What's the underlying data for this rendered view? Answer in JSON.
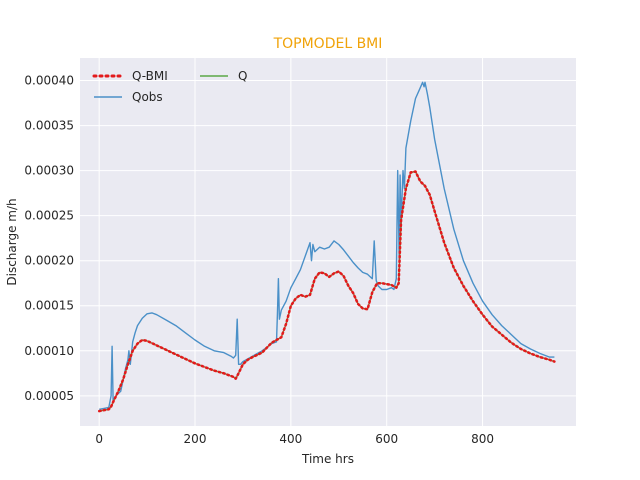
{
  "chart_data": {
    "type": "line",
    "title": "TOPMODEL BMI",
    "title_color": "#f0a30a",
    "xlabel": "Time hrs",
    "ylabel": "Discharge m/h",
    "xlim": [
      -40,
      995
    ],
    "ylim": [
      1.65e-05,
      0.000425
    ],
    "xticks": [
      0,
      200,
      400,
      600,
      800
    ],
    "xtick_labels": [
      "0",
      "200",
      "400",
      "600",
      "800"
    ],
    "yticks": [
      5e-05,
      0.0001,
      0.00015,
      0.0002,
      0.00025,
      0.0003,
      0.00035,
      0.0004
    ],
    "ytick_labels": [
      "0.00005",
      "0.00010",
      "0.00015",
      "0.00020",
      "0.00025",
      "0.00030",
      "0.00035",
      "0.00040"
    ],
    "grid": true,
    "background": "#eaeaf2",
    "legend_position": "top-left",
    "series": [
      {
        "name": "Q-BMI",
        "color": "#e31a1c",
        "style": "dotted",
        "x": [
          0,
          10,
          20,
          25,
          30,
          40,
          50,
          60,
          70,
          80,
          90,
          100,
          120,
          140,
          160,
          180,
          200,
          220,
          240,
          260,
          280,
          285,
          290,
          300,
          310,
          320,
          340,
          360,
          370,
          380,
          390,
          400,
          410,
          420,
          430,
          440,
          450,
          460,
          470,
          480,
          490,
          500,
          510,
          520,
          530,
          540,
          550,
          560,
          570,
          580,
          590,
          600,
          610,
          620,
          625,
          630,
          640,
          650,
          660,
          670,
          680,
          690,
          700,
          720,
          740,
          760,
          780,
          800,
          820,
          840,
          860,
          880,
          900,
          920,
          940,
          950
        ],
        "y": [
          3.3e-05,
          3.4e-05,
          3.5e-05,
          3.8e-05,
          4.4e-05,
          5.5e-05,
          6.8e-05,
          8.5e-05,
          0.0001,
          0.000108,
          0.000112,
          0.000111,
          0.000106,
          0.000101,
          9.6e-05,
          9.1e-05,
          8.6e-05,
          8.2e-05,
          7.8e-05,
          7.5e-05,
          7.1e-05,
          6.9e-05,
          7.4e-05,
          8.5e-05,
          9e-05,
          9.3e-05,
          9.8e-05,
          0.000109,
          0.000112,
          0.000115,
          0.00013,
          0.00015,
          0.000158,
          0.000162,
          0.00016,
          0.000162,
          0.00018,
          0.000187,
          0.000186,
          0.000182,
          0.000186,
          0.000188,
          0.000183,
          0.000172,
          0.000164,
          0.000152,
          0.000147,
          0.000146,
          0.000165,
          0.000175,
          0.000175,
          0.000174,
          0.000173,
          0.00017,
          0.000175,
          0.000245,
          0.00028,
          0.000298,
          0.000299,
          0.000288,
          0.000283,
          0.000273,
          0.000255,
          0.00022,
          0.000192,
          0.000172,
          0.000155,
          0.00014,
          0.000127,
          0.000118,
          0.000109,
          0.000102,
          9.7e-05,
          9.3e-05,
          9e-05,
          8.8e-05
        ]
      },
      {
        "name": "Qobs",
        "color": "#4a90c8",
        "style": "solid",
        "x": [
          0,
          10,
          20,
          25,
          27,
          29,
          35,
          45,
          55,
          60,
          62,
          65,
          70,
          75,
          80,
          90,
          100,
          110,
          120,
          140,
          160,
          180,
          200,
          220,
          240,
          260,
          275,
          280,
          285,
          288,
          291,
          295,
          300,
          320,
          340,
          360,
          370,
          372,
          374,
          376,
          380,
          390,
          400,
          410,
          420,
          430,
          440,
          443,
          446,
          450,
          460,
          470,
          480,
          490,
          500,
          510,
          520,
          530,
          540,
          550,
          560,
          570,
          574,
          578,
          582,
          590,
          600,
          610,
          615,
          620,
          623,
          626,
          628,
          630,
          632,
          634,
          637,
          640,
          650,
          660,
          670,
          675,
          678,
          680,
          685,
          690,
          700,
          720,
          740,
          760,
          780,
          800,
          820,
          840,
          860,
          880,
          900,
          920,
          940,
          950
        ],
        "y": [
          3.5e-05,
          3.6e-05,
          3.7e-05,
          5e-05,
          0.000105,
          4.5e-05,
          5e-05,
          5.5e-05,
          8e-05,
          9e-05,
          0.0001,
          8.5e-05,
          0.00011,
          0.00012,
          0.000128,
          0.000136,
          0.000141,
          0.000142,
          0.00014,
          0.000134,
          0.000128,
          0.00012,
          0.000112,
          0.000105,
          0.0001,
          9.8e-05,
          9.4e-05,
          9.2e-05,
          9.5e-05,
          0.000135,
          8.5e-05,
          8.5e-05,
          8.8e-05,
          9.4e-05,
          0.0001,
          0.000108,
          0.00011,
          0.00014,
          0.00018,
          0.000135,
          0.000145,
          0.000155,
          0.00017,
          0.00018,
          0.00019,
          0.000205,
          0.00022,
          0.0002,
          0.000218,
          0.00021,
          0.000215,
          0.000213,
          0.000215,
          0.000222,
          0.000218,
          0.000212,
          0.000205,
          0.000198,
          0.000192,
          0.000187,
          0.000185,
          0.00018,
          0.000222,
          0.000178,
          0.000172,
          0.000168,
          0.000168,
          0.00017,
          0.000168,
          0.00018,
          0.0003,
          0.0002,
          0.000295,
          0.000235,
          0.00027,
          0.0003,
          0.00028,
          0.000325,
          0.000355,
          0.00038,
          0.000392,
          0.000398,
          0.000393,
          0.000398,
          0.000385,
          0.00037,
          0.000335,
          0.00028,
          0.000235,
          0.0002,
          0.000175,
          0.000155,
          0.00014,
          0.000128,
          0.000118,
          0.000108,
          0.000102,
          9.7e-05,
          9.3e-05,
          9.3e-05
        ]
      },
      {
        "name": "Q",
        "color": "#5aa846",
        "style": "solid",
        "x": [
          0,
          10,
          20,
          25,
          30,
          40,
          50,
          60,
          70,
          80,
          90,
          100,
          120,
          140,
          160,
          180,
          200,
          220,
          240,
          260,
          280,
          285,
          290,
          300,
          310,
          320,
          340,
          360,
          370,
          380,
          390,
          400,
          410,
          420,
          430,
          440,
          450,
          460,
          470,
          480,
          490,
          500,
          510,
          520,
          530,
          540,
          550,
          560,
          570,
          580,
          590,
          600,
          610,
          620,
          625,
          630,
          640,
          650,
          660,
          670,
          680,
          690,
          700,
          720,
          740,
          760,
          780,
          800,
          820,
          840,
          860,
          880,
          900,
          920,
          940,
          950
        ],
        "y": [
          3.3e-05,
          3.4e-05,
          3.5e-05,
          3.8e-05,
          4.4e-05,
          5.5e-05,
          6.8e-05,
          8.5e-05,
          0.0001,
          0.000108,
          0.000112,
          0.000111,
          0.000106,
          0.000101,
          9.6e-05,
          9.1e-05,
          8.6e-05,
          8.2e-05,
          7.8e-05,
          7.5e-05,
          7.1e-05,
          6.9e-05,
          7.4e-05,
          8.5e-05,
          9e-05,
          9.3e-05,
          9.8e-05,
          0.000109,
          0.000112,
          0.000115,
          0.00013,
          0.00015,
          0.000158,
          0.000162,
          0.00016,
          0.000162,
          0.00018,
          0.000187,
          0.000186,
          0.000182,
          0.000186,
          0.000188,
          0.000183,
          0.000172,
          0.000164,
          0.000152,
          0.000147,
          0.000146,
          0.000165,
          0.000175,
          0.000175,
          0.000174,
          0.000173,
          0.00017,
          0.000175,
          0.000245,
          0.00028,
          0.000298,
          0.000299,
          0.000288,
          0.000283,
          0.000273,
          0.000255,
          0.00022,
          0.000192,
          0.000172,
          0.000155,
          0.00014,
          0.000127,
          0.000118,
          0.000109,
          0.000102,
          9.7e-05,
          9.3e-05,
          9e-05,
          8.8e-05
        ]
      }
    ]
  }
}
